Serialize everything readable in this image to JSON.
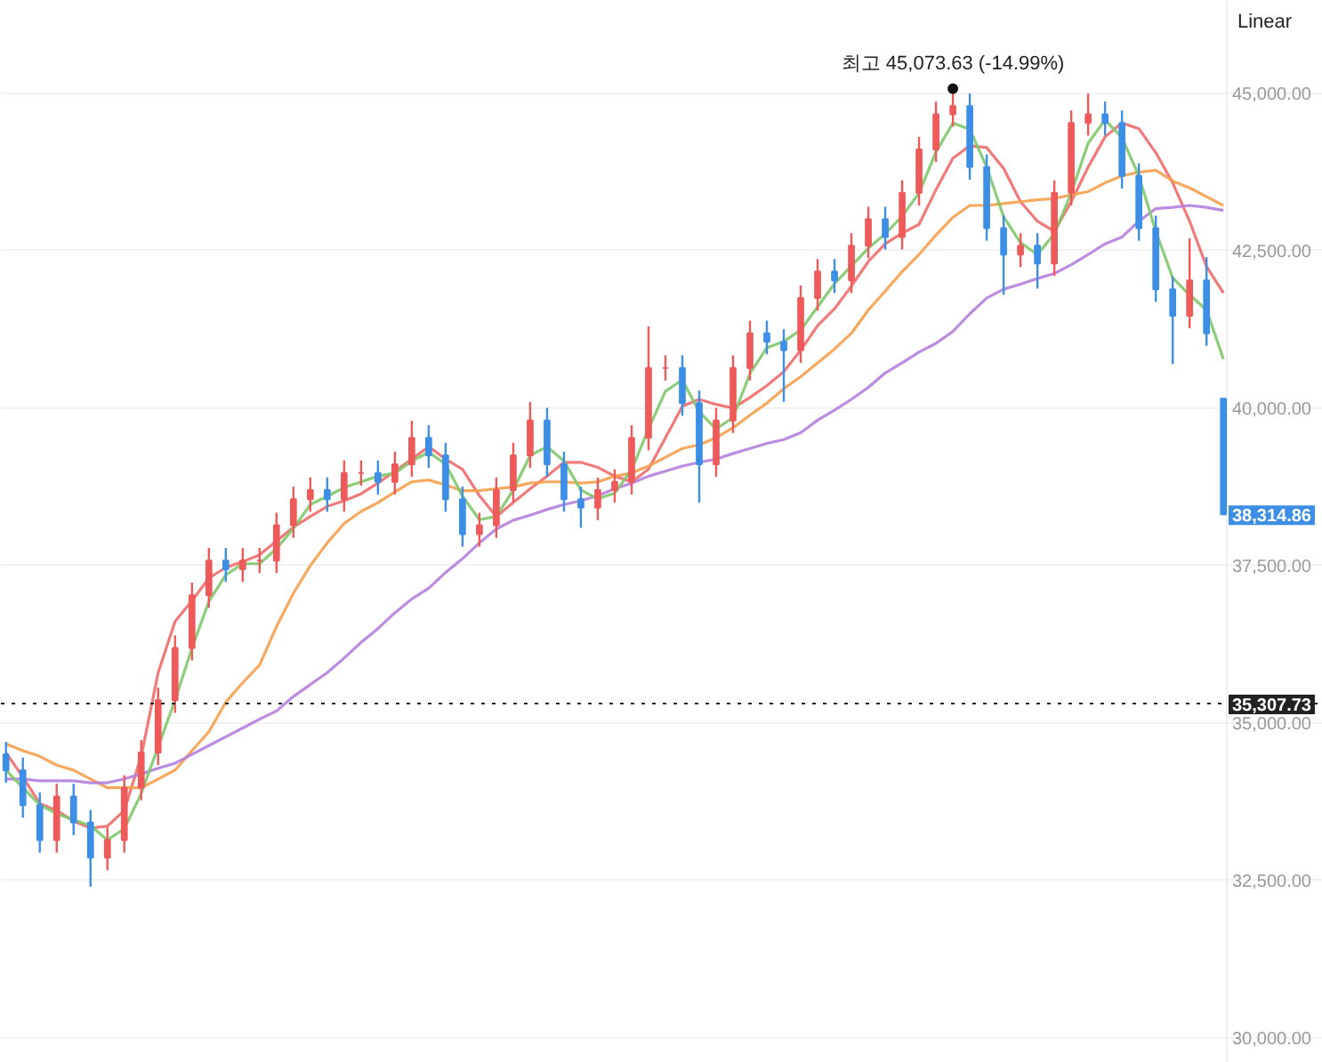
{
  "chart_data": {
    "type": "candlestick",
    "categories": [
      null,
      null,
      null,
      null,
      null,
      null,
      null,
      null,
      null,
      null,
      null,
      null,
      null,
      null,
      null,
      null,
      null,
      null,
      null,
      null,
      null,
      null,
      null,
      null,
      null,
      null,
      null,
      null,
      null,
      null,
      null,
      null,
      null,
      null,
      null,
      null,
      null,
      null,
      null,
      null,
      null,
      null,
      null,
      null,
      null,
      null,
      null,
      null,
      null,
      null,
      null,
      null,
      null,
      null,
      null,
      null,
      null,
      null,
      null,
      null,
      null,
      null,
      null,
      null,
      null,
      null,
      null,
      null,
      null,
      null,
      null,
      null,
      null
    ],
    "ohlc": [
      [
        34500,
        34700,
        34050,
        34250
      ],
      [
        34250,
        34450,
        33495,
        33695
      ],
      [
        33695,
        33895,
        32940,
        33140
      ],
      [
        33140,
        34033,
        32940,
        33833
      ],
      [
        33833,
        34033,
        33217,
        33417
      ],
      [
        33417,
        33617,
        32400,
        32860
      ],
      [
        32860,
        33340,
        32660,
        33140
      ],
      [
        33140,
        34170,
        32940,
        33970
      ],
      [
        33970,
        34730,
        33770,
        34530
      ],
      [
        34530,
        35560,
        34330,
        35360
      ],
      [
        35360,
        36390,
        35160,
        36190
      ],
      [
        36190,
        37230,
        35990,
        37030
      ],
      [
        37030,
        37780,
        36830,
        37580
      ],
      [
        37580,
        37780,
        37240,
        37440
      ],
      [
        37440,
        37780,
        37240,
        37580
      ],
      [
        37580,
        37780,
        37380,
        37580
      ],
      [
        37580,
        38340,
        37380,
        38140
      ],
      [
        38140,
        38755,
        37940,
        38555
      ],
      [
        38555,
        38900,
        38355,
        38700
      ],
      [
        38700,
        38900,
        38355,
        38555
      ],
      [
        38555,
        39170,
        38355,
        38970
      ],
      [
        38970,
        39170,
        38770,
        38970
      ],
      [
        38970,
        39170,
        38630,
        38830
      ],
      [
        38830,
        39310,
        38630,
        39110
      ],
      [
        39110,
        39800,
        38910,
        39530
      ],
      [
        39530,
        39730,
        39050,
        39250
      ],
      [
        39250,
        39450,
        38355,
        38555
      ],
      [
        38555,
        38755,
        37800,
        38000
      ],
      [
        38000,
        38340,
        37800,
        38140
      ],
      [
        38140,
        38900,
        37940,
        38700
      ],
      [
        38700,
        39450,
        38500,
        39250
      ],
      [
        39250,
        40100,
        39050,
        39805
      ],
      [
        39805,
        40005,
        38910,
        39110
      ],
      [
        39110,
        39310,
        38355,
        38555
      ],
      [
        38555,
        38755,
        38100,
        38420
      ],
      [
        38420,
        38900,
        38220,
        38700
      ],
      [
        38700,
        39030,
        38500,
        38830
      ],
      [
        38830,
        39730,
        38630,
        39530
      ],
      [
        39530,
        41300,
        39330,
        40640
      ],
      [
        40640,
        40840,
        40440,
        40640
      ],
      [
        40640,
        40840,
        39880,
        40080
      ],
      [
        40080,
        40280,
        38500,
        39110
      ],
      [
        39110,
        40005,
        38910,
        39805
      ],
      [
        39805,
        40840,
        39605,
        40640
      ],
      [
        40640,
        41390,
        40440,
        41190
      ],
      [
        41190,
        41390,
        40855,
        41055
      ],
      [
        41055,
        41255,
        40100,
        40920
      ],
      [
        40920,
        41950,
        40720,
        41750
      ],
      [
        41750,
        42370,
        41550,
        42170
      ],
      [
        42170,
        42370,
        41830,
        42030
      ],
      [
        42030,
        42780,
        41830,
        42580
      ],
      [
        42580,
        43200,
        42380,
        43000
      ],
      [
        43000,
        43200,
        42520,
        42720
      ],
      [
        42720,
        43620,
        42520,
        43420
      ],
      [
        43420,
        44310,
        43220,
        44110
      ],
      [
        44110,
        44870,
        43910,
        44670
      ],
      [
        44670,
        45073.63,
        44470,
        44800
      ],
      [
        44800,
        45000,
        43630,
        43830
      ],
      [
        43830,
        44030,
        42660,
        42860
      ],
      [
        42860,
        43060,
        41800,
        42440
      ],
      [
        42440,
        42780,
        42240,
        42580
      ],
      [
        42580,
        42780,
        41900,
        42300
      ],
      [
        42300,
        43620,
        42100,
        43420
      ],
      [
        43420,
        44730,
        43220,
        44530
      ],
      [
        44530,
        45000,
        44330,
        44670
      ],
      [
        44670,
        44870,
        44330,
        44530
      ],
      [
        44530,
        44730,
        43490,
        43690
      ],
      [
        43690,
        43890,
        42660,
        42860
      ],
      [
        42860,
        43060,
        41690,
        41890
      ],
      [
        41890,
        42090,
        40700,
        41470
      ],
      [
        41470,
        42700,
        41270,
        42030
      ],
      [
        42030,
        42400,
        40990,
        41190
      ],
      [
        40150,
        40150,
        38314.86,
        38314.86
      ]
    ],
    "colors": [
      "#3d8fe6",
      "#3d8fe6",
      "#3d8fe6",
      "#ee5a5a",
      "#3d8fe6",
      "#3d8fe6",
      "#ee5a5a",
      "#ee5a5a",
      "#ee5a5a",
      "#ee5a5a",
      "#ee5a5a",
      "#ee5a5a",
      "#ee5a5a",
      "#3d8fe6",
      "#ee5a5a",
      "#ee5a5a",
      "#ee5a5a",
      "#ee5a5a",
      "#ee5a5a",
      "#3d8fe6",
      "#ee5a5a",
      "#ee5a5a",
      "#3d8fe6",
      "#ee5a5a",
      "#ee5a5a",
      "#3d8fe6",
      "#3d8fe6",
      "#3d8fe6",
      "#ee5a5a",
      "#ee5a5a",
      "#ee5a5a",
      "#ee5a5a",
      "#3d8fe6",
      "#3d8fe6",
      "#3d8fe6",
      "#ee5a5a",
      "#ee5a5a",
      "#ee5a5a",
      "#ee5a5a",
      "#ee5a5a",
      "#3d8fe6",
      "#3d8fe6",
      "#ee5a5a",
      "#ee5a5a",
      "#ee5a5a",
      "#3d8fe6",
      "#3d8fe6",
      "#ee5a5a",
      "#ee5a5a",
      "#3d8fe6",
      "#ee5a5a",
      "#ee5a5a",
      "#3d8fe6",
      "#ee5a5a",
      "#ee5a5a",
      "#ee5a5a",
      "#ee5a5a",
      "#3d8fe6",
      "#3d8fe6",
      "#3d8fe6",
      "#ee5a5a",
      "#3d8fe6",
      "#ee5a5a",
      "#ee5a5a",
      "#ee5a5a",
      "#3d8fe6",
      "#3d8fe6",
      "#3d8fe6",
      "#3d8fe6",
      "#3d8fe6",
      "#ee5a5a",
      "#3d8fe6",
      "#3d8fe6"
    ],
    "series": [
      {
        "type": "line",
        "color": "#ef6b6b",
        "values": [
          34530,
          34140,
          33720,
          33610,
          33440,
          33330,
          33360,
          33610,
          34470,
          35800,
          36610,
          36940,
          37300,
          37470,
          37560,
          37670,
          37890,
          38110,
          38280,
          38440,
          38530,
          38640,
          38810,
          39000,
          39190,
          39390,
          39190,
          39030,
          38610,
          38280,
          38500,
          38720,
          38920,
          39140,
          39140,
          39060,
          38920,
          38830,
          39030,
          39530,
          40030,
          40140,
          40060,
          40000,
          40170,
          40360,
          40580,
          40920,
          41310,
          41580,
          41940,
          42330,
          42610,
          42780,
          42920,
          43470,
          43970,
          44170,
          44140,
          43810,
          43280,
          42970,
          42810,
          43280,
          43830,
          44310,
          44530,
          44440,
          44060,
          43580,
          42970,
          42250,
          41830
        ]
      },
      {
        "type": "line",
        "color": "#f5a04c",
        "values": [
          34670,
          34560,
          34470,
          34330,
          34250,
          34110,
          33970,
          33970,
          33970,
          34110,
          34250,
          34560,
          34860,
          35330,
          35640,
          35920,
          36530,
          37060,
          37500,
          37860,
          38170,
          38360,
          38500,
          38670,
          38830,
          38860,
          38780,
          38690,
          38690,
          38720,
          38750,
          38810,
          38830,
          38830,
          38810,
          38830,
          38920,
          38970,
          39080,
          39220,
          39360,
          39420,
          39530,
          39690,
          39890,
          40080,
          40310,
          40500,
          40720,
          40940,
          41190,
          41560,
          41860,
          42170,
          42440,
          42750,
          43030,
          43220,
          43220,
          43250,
          43280,
          43310,
          43330,
          43390,
          43440,
          43580,
          43690,
          43750,
          43780,
          43610,
          43500,
          43360,
          43220
        ]
      },
      {
        "type": "line",
        "color": "#b57fe0",
        "values": [
          34110,
          34110,
          34080,
          34080,
          34080,
          34050,
          34050,
          34110,
          34190,
          34280,
          34360,
          34500,
          34640,
          34780,
          34920,
          35060,
          35190,
          35420,
          35610,
          35800,
          36030,
          36280,
          36500,
          36750,
          36970,
          37140,
          37390,
          37610,
          37860,
          38080,
          38220,
          38300,
          38390,
          38470,
          38530,
          38610,
          38720,
          38810,
          38920,
          39000,
          39080,
          39140,
          39190,
          39280,
          39360,
          39440,
          39500,
          39610,
          39810,
          39970,
          40140,
          40330,
          40560,
          40720,
          40890,
          41030,
          41220,
          41500,
          41750,
          41890,
          41970,
          42060,
          42140,
          42280,
          42440,
          42610,
          42720,
          42970,
          43170,
          43190,
          43220,
          43190,
          43140
        ]
      },
      {
        "type": "line",
        "color": "#7ec86a",
        "values": [
          34250,
          33970,
          33700,
          33560,
          33460,
          33370,
          33140,
          33320,
          33880,
          34620,
          35360,
          36190,
          36930,
          37350,
          37530,
          37530,
          37770,
          38090,
          38470,
          38600,
          38740,
          38830,
          38920,
          38970,
          39160,
          39300,
          39110,
          38600,
          38230,
          38280,
          38700,
          39250,
          39390,
          39160,
          38700,
          38560,
          38650,
          39020,
          39670,
          40270,
          40450,
          39940,
          39670,
          39850,
          40550,
          40960,
          41060,
          41240,
          41610,
          41980,
          42260,
          42540,
          42770,
          43050,
          43420,
          44070,
          44530,
          44430,
          43830,
          43040,
          42630,
          42440,
          42770,
          43420,
          44210,
          44580,
          44300,
          43690,
          42810,
          42070,
          41800,
          41560,
          40780
        ]
      }
    ],
    "ylim": [
      29600,
      46470
    ],
    "yticks": [
      {
        "value": 30000,
        "label": "30,000.00"
      },
      {
        "value": 32500,
        "label": "32,500.00"
      },
      {
        "value": 35000,
        "label": "35,000.00"
      },
      {
        "value": 37500,
        "label": "37,500.00"
      },
      {
        "value": 40000,
        "label": "40,000.00"
      },
      {
        "value": 42500,
        "label": "42,500.00"
      },
      {
        "value": 45000,
        "label": "45,000.00"
      }
    ],
    "grid": "y",
    "ref_lines": [
      {
        "axis": "y",
        "value": 35307.73,
        "label": "35,307.73",
        "color": "#222222",
        "line_style": "dotted"
      }
    ],
    "annotations": [
      "Linear",
      {
        "text": "최고 45,073.63 (-14.99%)",
        "y": 45073.63
      },
      "38,314.86"
    ]
  }
}
